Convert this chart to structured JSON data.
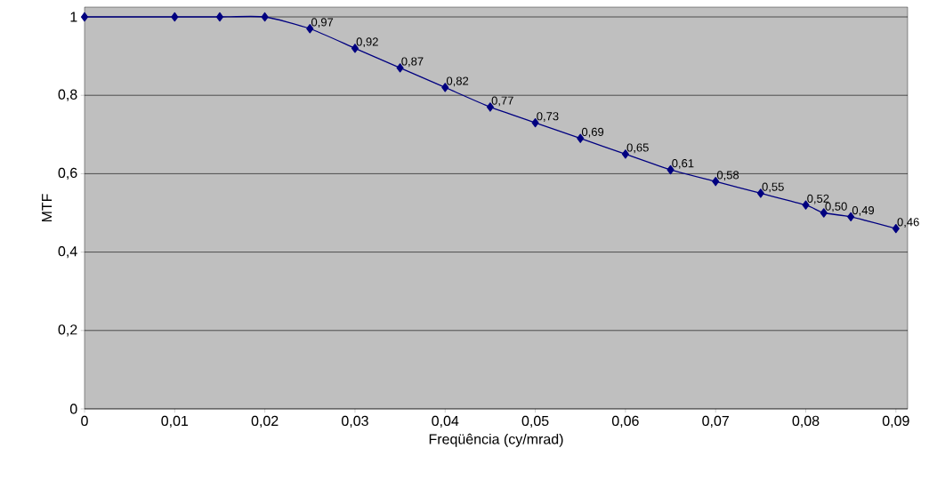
{
  "chart_data": {
    "type": "line",
    "xlabel": "Freqüência (cy/mrad)",
    "ylabel": "MTF",
    "x": [
      0,
      0.01,
      0.015,
      0.02,
      0.025,
      0.03,
      0.035,
      0.04,
      0.045,
      0.05,
      0.055,
      0.06,
      0.065,
      0.07,
      0.075,
      0.08,
      0.082,
      0.085,
      0.09
    ],
    "series": [
      {
        "color": "#000080",
        "values": [
          1,
          1,
          1,
          1,
          0.97,
          0.92,
          0.87,
          0.82,
          0.77,
          0.73,
          0.69,
          0.65,
          0.61,
          0.58,
          0.55,
          0.52,
          0.5,
          0.49,
          0.46
        ],
        "value_labels": [
          null,
          null,
          null,
          null,
          "0,97",
          "0,92",
          "0,87",
          "0,82",
          "0,77",
          "0,73",
          "0,69",
          "0,65",
          "0,61",
          "0,58",
          "0,55",
          "0,52",
          "0,50",
          "0,49",
          "0,46"
        ]
      }
    ],
    "marker": "diamond",
    "grid": "y",
    "xlim": [
      0,
      0.0913
    ],
    "ylim": [
      0,
      1.025
    ],
    "xticks": [
      0,
      {
        "value": 0.01,
        "label": "0,01"
      },
      {
        "value": 0.02,
        "label": "0,02"
      },
      {
        "value": 0.03,
        "label": "0,03"
      },
      {
        "value": 0.04,
        "label": "0,04"
      },
      {
        "value": 0.05,
        "label": "0,05"
      },
      {
        "value": 0.06,
        "label": "0,06"
      },
      {
        "value": 0.07,
        "label": "0,07"
      },
      {
        "value": 0.08,
        "label": "0,08"
      },
      {
        "value": 0.09,
        "label": "0,09"
      }
    ],
    "yticks": [
      0,
      {
        "value": 0.2,
        "label": "0,2"
      },
      {
        "value": 0.4,
        "label": "0,4"
      },
      {
        "value": 0.6,
        "label": "0,6"
      },
      {
        "value": 0.8,
        "label": "0,8"
      },
      1
    ]
  }
}
